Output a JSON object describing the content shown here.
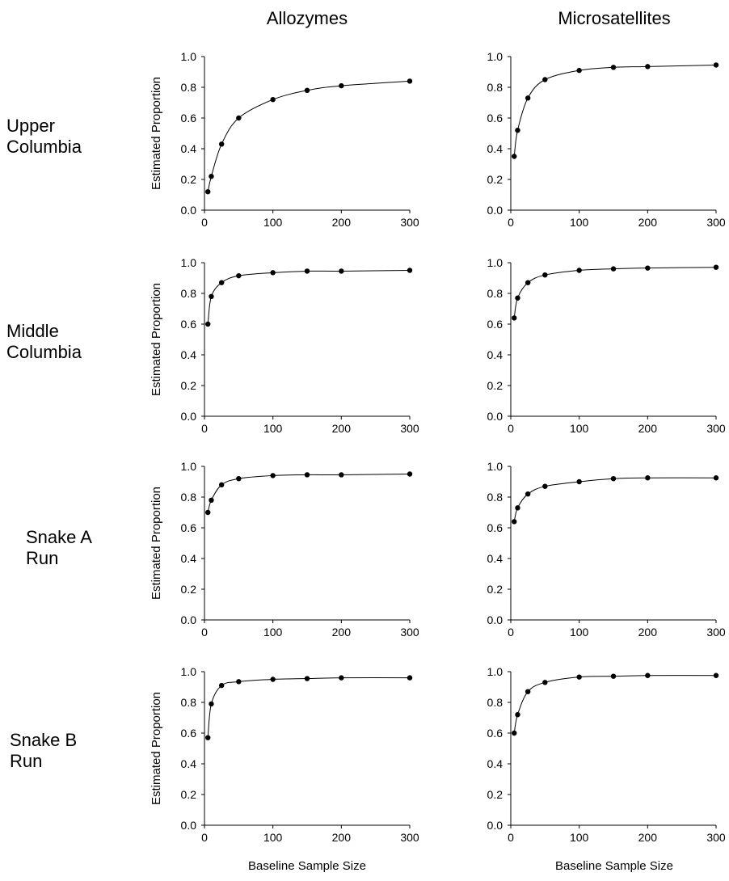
{
  "columns": [
    "Allozymes",
    "Microsatellites"
  ],
  "rows": [
    [
      "Upper",
      "Columbia"
    ],
    [
      "Middle",
      "Columbia"
    ],
    [
      "Snake A",
      "Run"
    ],
    [
      "Snake B",
      "Run"
    ]
  ],
  "x_axis_label": "Baseline Sample Size",
  "chart_data": [
    {
      "type": "line",
      "row": "Upper Columbia",
      "column": "Allozymes",
      "ylabel": "Estimated Proportion",
      "xlim": [
        0,
        300
      ],
      "ylim": [
        0,
        1.0
      ],
      "xticks": [
        "0",
        "100",
        "200",
        "300"
      ],
      "yticks": [
        "0.0",
        "0.2",
        "0.4",
        "0.6",
        "0.8",
        "1.0"
      ],
      "x": [
        5,
        10,
        25,
        50,
        100,
        150,
        200,
        300
      ],
      "y": [
        0.12,
        0.22,
        0.43,
        0.6,
        0.72,
        0.78,
        0.81,
        0.84
      ]
    },
    {
      "type": "line",
      "row": "Upper Columbia",
      "column": "Microsatellites",
      "ylabel": "",
      "xlim": [
        0,
        300
      ],
      "ylim": [
        0,
        1.0
      ],
      "xticks": [
        "0",
        "100",
        "200",
        "300"
      ],
      "yticks": [
        "0.0",
        "0.2",
        "0.4",
        "0.6",
        "0.8",
        "1.0"
      ],
      "x": [
        5,
        10,
        25,
        50,
        100,
        150,
        200,
        300
      ],
      "y": [
        0.35,
        0.52,
        0.73,
        0.85,
        0.91,
        0.93,
        0.935,
        0.945
      ]
    },
    {
      "type": "line",
      "row": "Middle Columbia",
      "column": "Allozymes",
      "ylabel": "Estimated Proportion",
      "xlim": [
        0,
        300
      ],
      "ylim": [
        0,
        1.0
      ],
      "xticks": [
        "0",
        "100",
        "200",
        "300"
      ],
      "yticks": [
        "0.0",
        "0.2",
        "0.4",
        "0.6",
        "0.8",
        "1.0"
      ],
      "x": [
        5,
        10,
        25,
        50,
        100,
        150,
        200,
        300
      ],
      "y": [
        0.6,
        0.78,
        0.87,
        0.915,
        0.935,
        0.945,
        0.945,
        0.95
      ]
    },
    {
      "type": "line",
      "row": "Middle Columbia",
      "column": "Microsatellites",
      "ylabel": "",
      "xlim": [
        0,
        300
      ],
      "ylim": [
        0,
        1.0
      ],
      "xticks": [
        "0",
        "100",
        "200",
        "300"
      ],
      "yticks": [
        "0.0",
        "0.2",
        "0.4",
        "0.6",
        "0.8",
        "1.0"
      ],
      "x": [
        5,
        10,
        25,
        50,
        100,
        150,
        200,
        300
      ],
      "y": [
        0.64,
        0.77,
        0.87,
        0.92,
        0.95,
        0.96,
        0.965,
        0.97
      ]
    },
    {
      "type": "line",
      "row": "Snake A Run",
      "column": "Allozymes",
      "ylabel": "Estimated Proportion",
      "xlim": [
        0,
        300
      ],
      "ylim": [
        0,
        1.0
      ],
      "xticks": [
        "0",
        "100",
        "200",
        "300"
      ],
      "yticks": [
        "0.0",
        "0.2",
        "0.4",
        "0.6",
        "0.8",
        "1.0"
      ],
      "x": [
        5,
        10,
        25,
        50,
        100,
        150,
        200,
        300
      ],
      "y": [
        0.7,
        0.78,
        0.88,
        0.92,
        0.94,
        0.945,
        0.945,
        0.95
      ]
    },
    {
      "type": "line",
      "row": "Snake A Run",
      "column": "Microsatellites",
      "ylabel": "",
      "xlim": [
        0,
        300
      ],
      "ylim": [
        0,
        1.0
      ],
      "xticks": [
        "0",
        "100",
        "200",
        "300"
      ],
      "yticks": [
        "0.0",
        "0.2",
        "0.4",
        "0.6",
        "0.8",
        "1.0"
      ],
      "x": [
        5,
        10,
        25,
        50,
        100,
        150,
        200,
        300
      ],
      "y": [
        0.64,
        0.73,
        0.82,
        0.87,
        0.9,
        0.92,
        0.925,
        0.925
      ]
    },
    {
      "type": "line",
      "row": "Snake B Run",
      "column": "Allozymes",
      "ylabel": "Estimated Proportion",
      "xlim": [
        0,
        300
      ],
      "ylim": [
        0,
        1.0
      ],
      "xticks": [
        "0",
        "100",
        "200",
        "300"
      ],
      "yticks": [
        "0.0",
        "0.2",
        "0.4",
        "0.6",
        "0.8",
        "1.0"
      ],
      "x": [
        5,
        10,
        25,
        50,
        100,
        150,
        200,
        300
      ],
      "y": [
        0.57,
        0.79,
        0.91,
        0.935,
        0.95,
        0.955,
        0.96,
        0.96
      ]
    },
    {
      "type": "line",
      "row": "Snake B Run",
      "column": "Microsatellites",
      "ylabel": "",
      "xlim": [
        0,
        300
      ],
      "ylim": [
        0,
        1.0
      ],
      "xticks": [
        "0",
        "100",
        "200",
        "300"
      ],
      "yticks": [
        "0.0",
        "0.2",
        "0.4",
        "0.6",
        "0.8",
        "1.0"
      ],
      "x": [
        5,
        10,
        25,
        50,
        100,
        150,
        200,
        300
      ],
      "y": [
        0.6,
        0.72,
        0.87,
        0.93,
        0.965,
        0.97,
        0.975,
        0.975
      ]
    }
  ]
}
